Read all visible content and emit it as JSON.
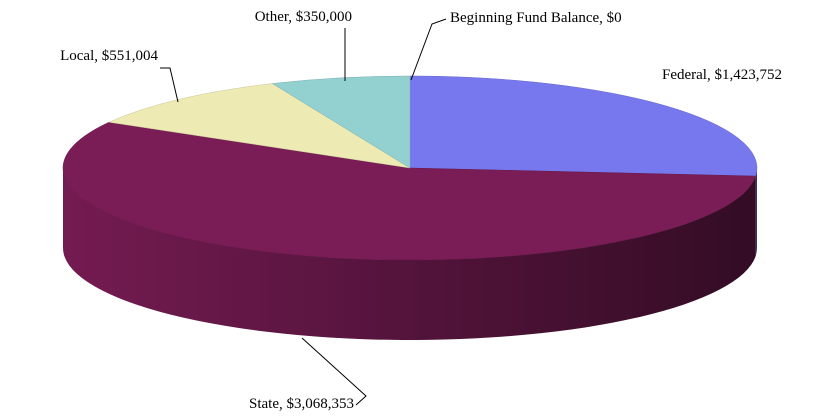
{
  "chart_data": {
    "type": "pie3d",
    "categories": [
      "Beginning Fund Balance",
      "Federal",
      "State",
      "Local",
      "Other"
    ],
    "values": [
      0,
      1423752,
      3068353,
      551004,
      350000
    ],
    "value_labels": [
      "$0",
      "$1,423,752",
      "$3,068,353",
      "$551,004",
      "$350,000"
    ],
    "colors": [
      "#c0c0c0",
      "#7878ee",
      "#7a1c56",
      "#eeeab4",
      "#93d0d0"
    ]
  }
}
